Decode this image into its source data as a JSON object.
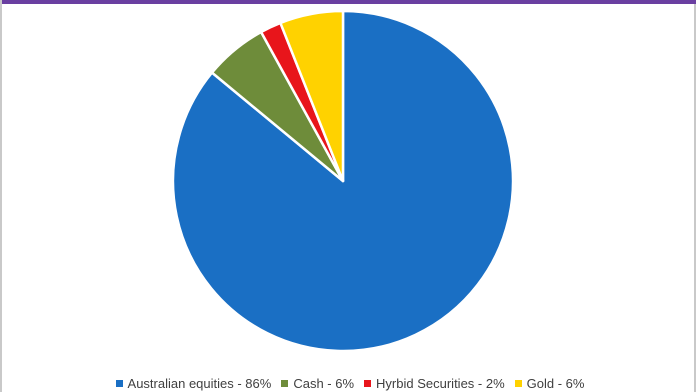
{
  "chart_data": {
    "type": "pie",
    "title": "",
    "start_angle_deg": 0,
    "direction": "clockwise",
    "legend_position": "bottom",
    "slice_border_color": "#ffffff",
    "slices": [
      {
        "label": "Australian equities - 86%",
        "value": 86,
        "color": "#1a6fc4"
      },
      {
        "label": "Cash - 6%",
        "value": 6,
        "color": "#6e8c3a"
      },
      {
        "label": "Hyrbid Securities - 2%",
        "value": 2,
        "color": "#e8151b"
      },
      {
        "label": "Gold - 6%",
        "value": 6,
        "color": "#ffd200"
      }
    ]
  },
  "colors": {
    "top_bar": "#6a3fa1",
    "frame_border": "#c9c9c9",
    "legend_text": "#404040"
  }
}
